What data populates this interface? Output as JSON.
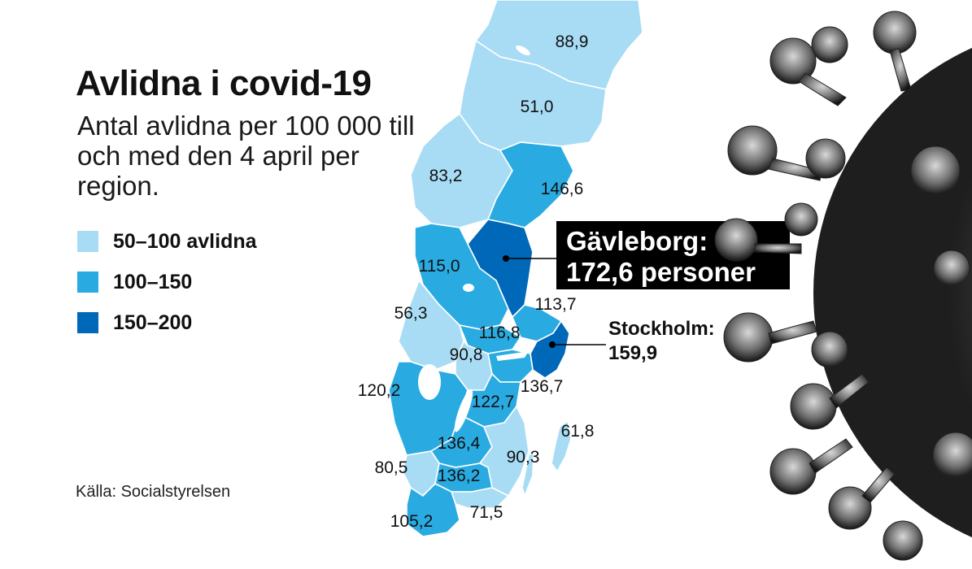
{
  "title": "Avlidna i covid-19",
  "subtitle": "Antal avlidna per 100 000 till och med den 4 april per region.",
  "legend": [
    {
      "label": "50–100 avlidna",
      "color": "#a8dcf5"
    },
    {
      "label": "100–150",
      "color": "#29abe2"
    },
    {
      "label": "150–200",
      "color": "#0068b8"
    }
  ],
  "source": "Källa: Socialstyrelsen",
  "regions": [
    {
      "name": "Norrbotten",
      "value": "88,9",
      "class": "low"
    },
    {
      "name": "Västerbotten",
      "value": "51,0",
      "class": "low"
    },
    {
      "name": "Jämtland",
      "value": "83,2",
      "class": "low"
    },
    {
      "name": "Västernorrland",
      "value": "146,6",
      "class": "mid"
    },
    {
      "name": "Dalarna",
      "value": "115,0",
      "class": "mid"
    },
    {
      "name": "Gävleborg",
      "value": "172,6",
      "class": "high"
    },
    {
      "name": "Uppsala",
      "value": "113,7",
      "class": "mid"
    },
    {
      "name": "Värmland",
      "value": "56,3",
      "class": "low"
    },
    {
      "name": "Västmanland",
      "value": "116,8",
      "class": "mid"
    },
    {
      "name": "Örebro",
      "value": "90,8",
      "class": "low"
    },
    {
      "name": "Stockholm",
      "value": "159,9",
      "class": "high"
    },
    {
      "name": "Södermanland",
      "value": "136,7",
      "class": "mid"
    },
    {
      "name": "Västra Götaland",
      "value": "120,2",
      "class": "mid"
    },
    {
      "name": "Östergötland",
      "value": "122,7",
      "class": "mid"
    },
    {
      "name": "Jönköping",
      "value": "136,4",
      "class": "mid"
    },
    {
      "name": "Gotland",
      "value": "61,8",
      "class": "low"
    },
    {
      "name": "Kalmar",
      "value": "90,3",
      "class": "low"
    },
    {
      "name": "Halland",
      "value": "80,5",
      "class": "low"
    },
    {
      "name": "Kronoberg",
      "value": "136,2",
      "class": "mid"
    },
    {
      "name": "Blekinge",
      "value": "71,5",
      "class": "low"
    },
    {
      "name": "Skåne",
      "value": "105,2",
      "class": "mid"
    }
  ],
  "callouts": {
    "gavleborg": {
      "line1": "Gävleborg:",
      "line2": "172,6 personer"
    },
    "stockholm": {
      "line1": "Stockholm:",
      "line2": "159,9"
    }
  },
  "colors": {
    "low": "#a8dcf5",
    "mid": "#29abe2",
    "high": "#0068b8"
  }
}
